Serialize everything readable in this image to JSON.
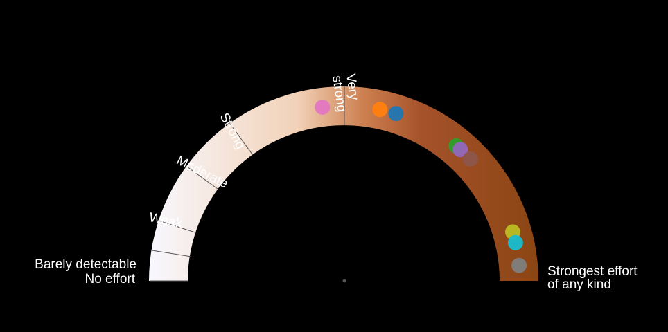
{
  "chart_data": {
    "type": "gauge",
    "scale_range": [
      0,
      10
    ],
    "bands": [
      {
        "label": "No effort",
        "value": 0
      },
      {
        "label": "Barely detectable",
        "value": 0.5
      },
      {
        "label": "Weak",
        "value": 1
      },
      {
        "label": "Moderate",
        "value": 2
      },
      {
        "label": "Strong",
        "value": 3
      },
      {
        "label": "Very strong",
        "value": 5
      },
      {
        "label": "Strongest effort of any kind",
        "value": 10
      }
    ],
    "points": [
      {
        "value": 4.6,
        "color": "#e377c2"
      },
      {
        "value": 5.65,
        "color": "#ff7f0e"
      },
      {
        "value": 5.95,
        "color": "#1f77b4"
      },
      {
        "value": 7.2,
        "color": "#2ca02c"
      },
      {
        "value": 7.3,
        "color": "#9467bd"
      },
      {
        "value": 7.55,
        "color": "#8c564b"
      },
      {
        "value": 9.1,
        "color": "#bcbd22"
      },
      {
        "value": 9.3,
        "color": "#17becf"
      },
      {
        "value": 9.72,
        "color": "#7f7f7f"
      }
    ],
    "colors": {
      "gradient": [
        "#f8f8ff",
        "#f2d2b8",
        "#c87a45",
        "#8b4513"
      ],
      "background": "#000000",
      "tick": "#555555",
      "text": "#ffffff"
    }
  }
}
